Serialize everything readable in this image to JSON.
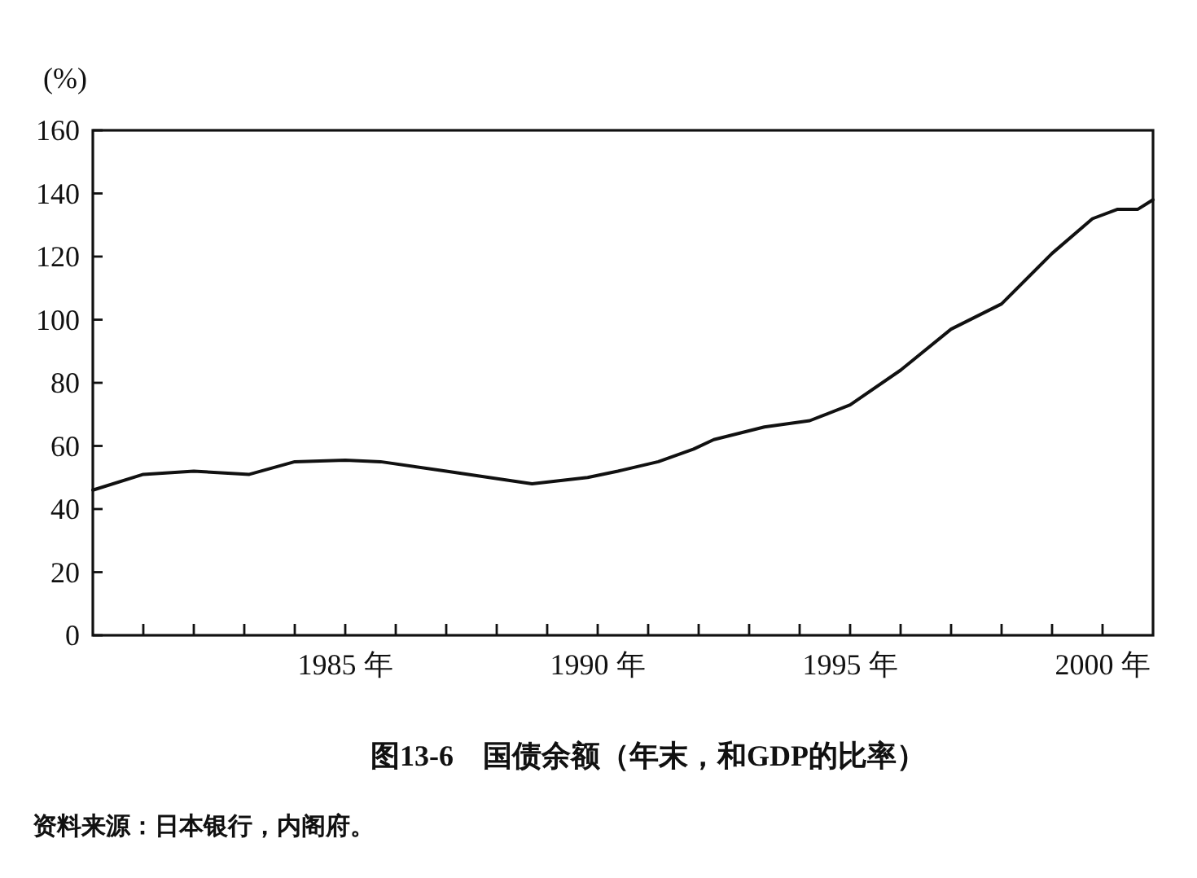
{
  "chart_data": {
    "type": "line",
    "title": "图13-6　国债余额（年末，和GDP的比率）",
    "ylabel": "(%)",
    "annotations": [
      "资料来源：日本银行，内阁府。"
    ],
    "series": [
      {
        "color": "#111111",
        "x": [
          1980,
          1981,
          1982,
          1983.1,
          1984,
          1985,
          1985.7,
          1987,
          1988.7,
          1989.8,
          1990.4,
          1991.2,
          1991.9,
          1992.3,
          1993.3,
          1994.2,
          1995,
          1996,
          1997,
          1998,
          1999,
          1999.8,
          2000.3,
          2000.7,
          2001
        ],
        "values": [
          46,
          51,
          52,
          51,
          55,
          55.5,
          55,
          52,
          48,
          50,
          52,
          55,
          59,
          62,
          66,
          68,
          73,
          84,
          97,
          105,
          121,
          132,
          135,
          135,
          138
        ]
      }
    ],
    "xlim": [
      1980,
      2001
    ],
    "xticks": [
      {
        "value": 1981,
        "label": null
      },
      {
        "value": 1982,
        "label": null
      },
      {
        "value": 1983,
        "label": null
      },
      {
        "value": 1984,
        "label": null
      },
      {
        "value": 1985,
        "label": "1985 年"
      },
      {
        "value": 1986,
        "label": null
      },
      {
        "value": 1987,
        "label": null
      },
      {
        "value": 1988,
        "label": null
      },
      {
        "value": 1989,
        "label": null
      },
      {
        "value": 1990,
        "label": "1990 年"
      },
      {
        "value": 1991,
        "label": null
      },
      {
        "value": 1992,
        "label": null
      },
      {
        "value": 1993,
        "label": null
      },
      {
        "value": 1994,
        "label": null
      },
      {
        "value": 1995,
        "label": "1995 年"
      },
      {
        "value": 1996,
        "label": null
      },
      {
        "value": 1997,
        "label": null
      },
      {
        "value": 1998,
        "label": null
      },
      {
        "value": 1999,
        "label": null
      },
      {
        "value": 2000,
        "label": "2000 年"
      }
    ],
    "ylim": [
      0,
      160
    ],
    "yticks": [
      0,
      20,
      40,
      60,
      80,
      100,
      120,
      140,
      160
    ],
    "grid": false,
    "marker": "none",
    "line_style": "solid"
  }
}
